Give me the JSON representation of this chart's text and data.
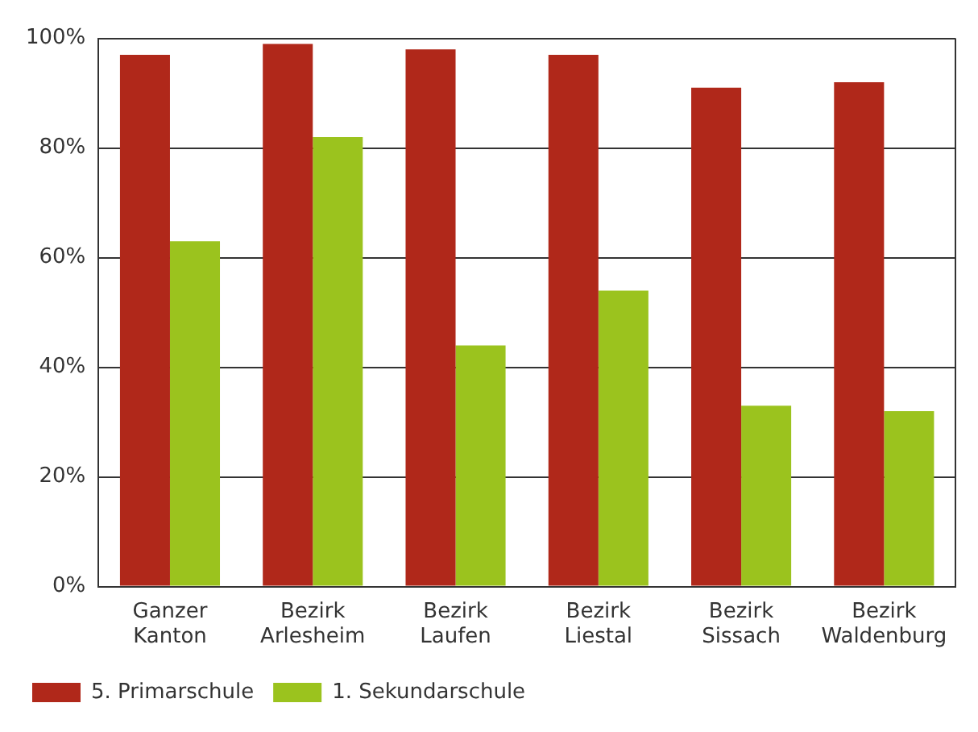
{
  "chart_data": {
    "type": "bar",
    "categories": [
      "Ganzer Kanton",
      "Bezirk Arlesheim",
      "Bezirk Laufen",
      "Bezirk Liestal",
      "Bezirk Sissach",
      "Bezirk Waldenburg"
    ],
    "series": [
      {
        "name": "5. Primarschule",
        "color": "#b0281a",
        "values": [
          97,
          99,
          98,
          97,
          91,
          92
        ]
      },
      {
        "name": "1. Sekundarschule",
        "color": "#9bc31e",
        "values": [
          63,
          82,
          44,
          54,
          33,
          32
        ]
      }
    ],
    "ylim": [
      0,
      100
    ],
    "yticks": [
      {
        "value": 0,
        "label": "0%"
      },
      {
        "value": 20,
        "label": "20%"
      },
      {
        "value": 40,
        "label": "40%"
      },
      {
        "value": 60,
        "label": "60%"
      },
      {
        "value": 80,
        "label": "80%"
      },
      {
        "value": 100,
        "label": "100%"
      }
    ],
    "grid": "y",
    "legend": "bottom left"
  }
}
